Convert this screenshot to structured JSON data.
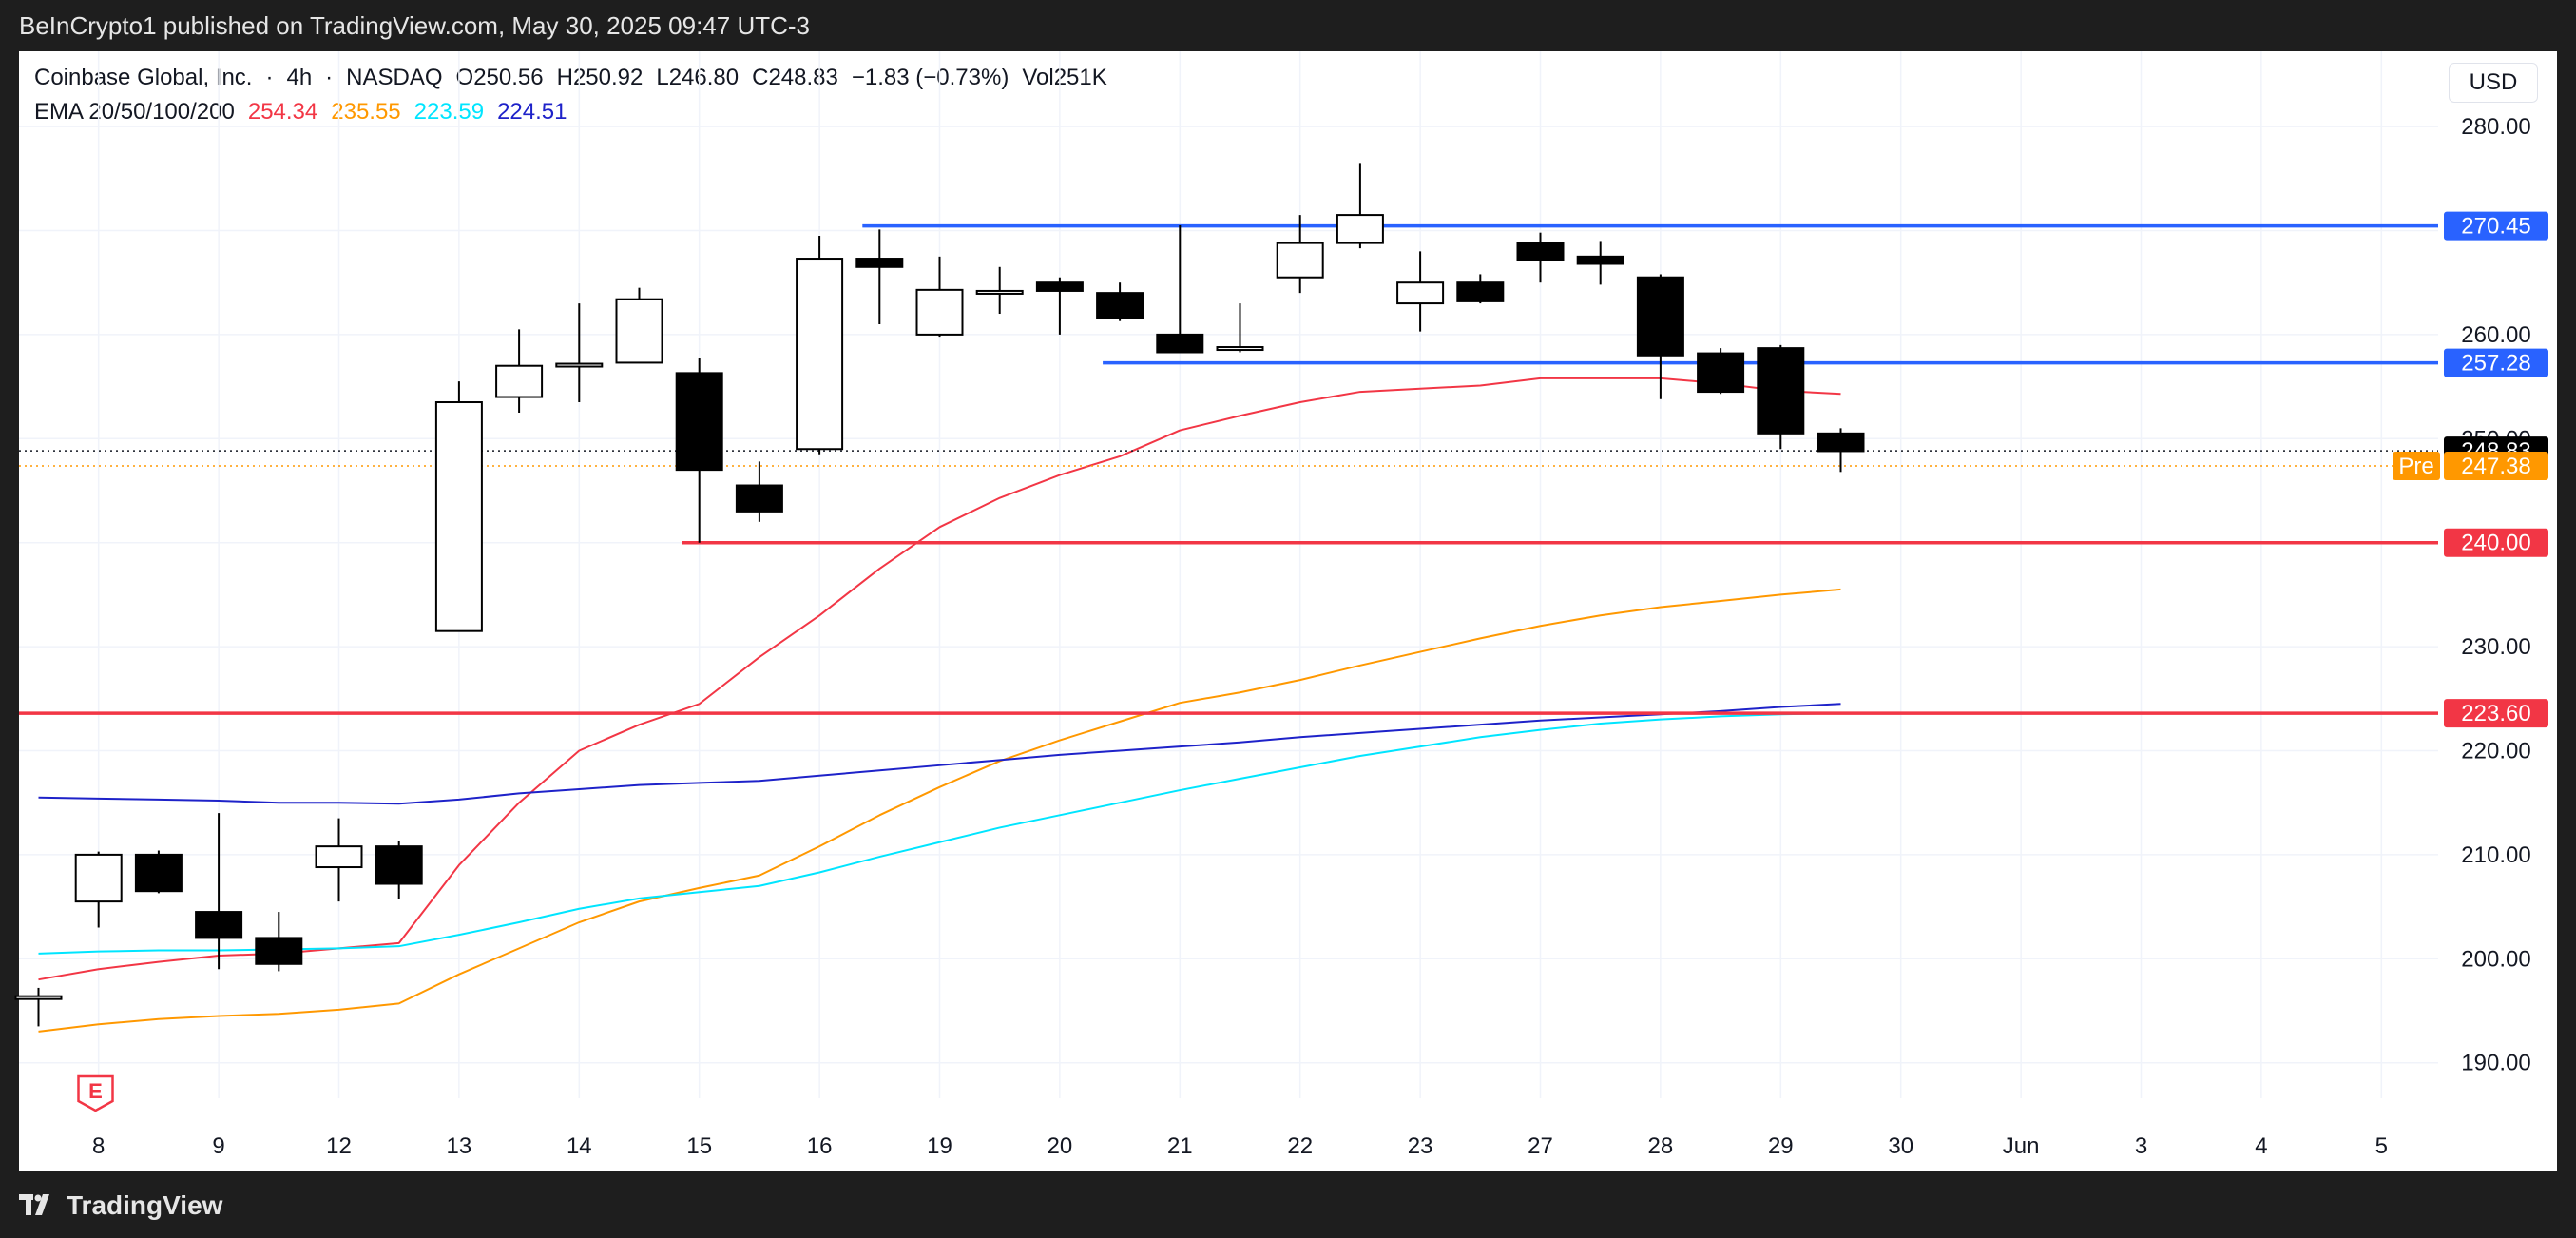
{
  "header": {
    "publisher": "BeInCrypto1 published on TradingView.com, May 30, 2025 09:47 UTC-3"
  },
  "legend": {
    "symbol": "Coinbase Global, Inc.",
    "interval": "4h",
    "exchange": "NASDAQ",
    "open": "O250.56",
    "high": "H250.92",
    "low": "L246.80",
    "close": "C248.83",
    "change": "−1.83 (−0.73%)",
    "volume": "Vol251K",
    "ema_label": "EMA 20/50/100/200",
    "ema_values": [
      {
        "value": "254.34",
        "color": "#f23645"
      },
      {
        "value": "235.55",
        "color": "#ff9800"
      },
      {
        "value": "223.59",
        "color": "#00e5ff"
      },
      {
        "value": "224.51",
        "color": "#1e22c9"
      }
    ]
  },
  "currency": "USD",
  "footer": {
    "brand": "TradingView"
  },
  "chart_data": {
    "type": "candlestick",
    "y_ticks": [
      190,
      200,
      210,
      220,
      230,
      240,
      250,
      260,
      270,
      280
    ],
    "y_tick_labels": [
      "190.00",
      "200.00",
      "210.00",
      "220.00",
      "230.00",
      "240.00",
      "250.00",
      "260.00",
      "270.00",
      "280.00"
    ],
    "x_ticks": [
      {
        "label": "8",
        "slot": 1
      },
      {
        "label": "9",
        "slot": 3
      },
      {
        "label": "12",
        "slot": 5
      },
      {
        "label": "13",
        "slot": 7
      },
      {
        "label": "14",
        "slot": 9
      },
      {
        "label": "15",
        "slot": 11
      },
      {
        "label": "16",
        "slot": 13
      },
      {
        "label": "19",
        "slot": 15
      },
      {
        "label": "20",
        "slot": 17
      },
      {
        "label": "21",
        "slot": 19
      },
      {
        "label": "22",
        "slot": 21
      },
      {
        "label": "23",
        "slot": 23
      },
      {
        "label": "27",
        "slot": 25
      },
      {
        "label": "28",
        "slot": 27
      },
      {
        "label": "29",
        "slot": 29
      },
      {
        "label": "30",
        "slot": 31
      },
      {
        "label": "Jun",
        "slot": 33
      },
      {
        "label": "3",
        "slot": 35
      },
      {
        "label": "4",
        "slot": 37
      },
      {
        "label": "5",
        "slot": 39
      }
    ],
    "candles": [
      {
        "o": 196.2,
        "h": 197.2,
        "l": 193.5,
        "c": 196.4
      },
      {
        "o": 205.5,
        "h": 210.3,
        "l": 203.0,
        "c": 210.0
      },
      {
        "o": 210.0,
        "h": 210.4,
        "l": 206.3,
        "c": 206.5
      },
      {
        "o": 204.5,
        "h": 214.0,
        "l": 199.0,
        "c": 202.0
      },
      {
        "o": 202.0,
        "h": 204.5,
        "l": 198.8,
        "c": 199.5
      },
      {
        "o": 208.8,
        "h": 213.5,
        "l": 205.5,
        "c": 210.8
      },
      {
        "o": 210.8,
        "h": 211.3,
        "l": 205.7,
        "c": 207.2
      },
      {
        "o": 231.5,
        "h": 255.5,
        "l": 231.5,
        "c": 253.5
      },
      {
        "o": 254.0,
        "h": 260.5,
        "l": 252.5,
        "c": 257.0
      },
      {
        "o": 257.0,
        "h": 263.0,
        "l": 253.5,
        "c": 257.2
      },
      {
        "o": 257.3,
        "h": 264.5,
        "l": 257.3,
        "c": 263.4
      },
      {
        "o": 256.3,
        "h": 257.8,
        "l": 240.0,
        "c": 247.0
      },
      {
        "o": 245.5,
        "h": 247.8,
        "l": 242.0,
        "c": 243.0
      },
      {
        "o": 249.0,
        "h": 269.5,
        "l": 248.5,
        "c": 267.3
      },
      {
        "o": 267.3,
        "h": 270.1,
        "l": 261.0,
        "c": 266.5
      },
      {
        "o": 260.0,
        "h": 267.5,
        "l": 259.8,
        "c": 264.3
      },
      {
        "o": 264.0,
        "h": 266.5,
        "l": 262.0,
        "c": 264.2
      },
      {
        "o": 265.0,
        "h": 265.5,
        "l": 260.0,
        "c": 264.2
      },
      {
        "o": 264.0,
        "h": 265.0,
        "l": 261.3,
        "c": 261.6
      },
      {
        "o": 260.0,
        "h": 270.5,
        "l": 258.5,
        "c": 258.3
      },
      {
        "o": 258.8,
        "h": 263.0,
        "l": 258.3,
        "c": 258.8
      },
      {
        "o": 265.5,
        "h": 271.5,
        "l": 264.0,
        "c": 268.8
      },
      {
        "o": 268.8,
        "h": 276.5,
        "l": 268.3,
        "c": 271.5
      },
      {
        "o": 263.0,
        "h": 268.0,
        "l": 260.3,
        "c": 265.0
      },
      {
        "o": 265.0,
        "h": 265.8,
        "l": 263.0,
        "c": 263.2
      },
      {
        "o": 268.8,
        "h": 269.8,
        "l": 265.0,
        "c": 267.2
      },
      {
        "o": 267.5,
        "h": 269.0,
        "l": 264.8,
        "c": 266.8
      },
      {
        "o": 265.5,
        "h": 265.8,
        "l": 253.8,
        "c": 258.0
      },
      {
        "o": 258.2,
        "h": 258.7,
        "l": 254.3,
        "c": 254.5
      },
      {
        "o": 258.7,
        "h": 259.0,
        "l": 249.0,
        "c": 250.5
      },
      {
        "o": 250.5,
        "h": 251.0,
        "l": 246.8,
        "c": 248.8
      }
    ],
    "ema": [
      {
        "name": "EMA 20",
        "color": "#f23645",
        "values": [
          198.0,
          199.0,
          199.7,
          200.3,
          200.5,
          201.0,
          201.5,
          209.0,
          215.0,
          220.0,
          222.5,
          224.5,
          229.0,
          233.0,
          237.5,
          241.5,
          244.3,
          246.5,
          248.3,
          250.8,
          252.2,
          253.5,
          254.5,
          254.8,
          255.1,
          255.8,
          255.8,
          255.8,
          255.3,
          254.6,
          254.3
        ]
      },
      {
        "name": "EMA 50",
        "color": "#ff9800",
        "values": [
          193.0,
          193.7,
          194.2,
          194.5,
          194.7,
          195.1,
          195.7,
          198.5,
          201.0,
          203.5,
          205.5,
          206.8,
          208.0,
          210.8,
          213.8,
          216.5,
          219.0,
          221.0,
          222.8,
          224.6,
          225.6,
          226.8,
          228.2,
          229.5,
          230.8,
          232.0,
          233.0,
          233.8,
          234.4,
          235.0,
          235.5
        ]
      },
      {
        "name": "EMA 100",
        "color": "#00e5ff",
        "values": [
          200.5,
          200.7,
          200.8,
          200.8,
          200.9,
          201.0,
          201.2,
          202.3,
          203.5,
          204.8,
          205.8,
          206.4,
          207.0,
          208.3,
          209.8,
          211.2,
          212.6,
          213.8,
          215.0,
          216.2,
          217.3,
          218.4,
          219.5,
          220.4,
          221.3,
          222.0,
          222.6,
          223.0,
          223.3,
          223.5,
          223.6
        ]
      },
      {
        "name": "EMA 200",
        "color": "#1e22c9",
        "values": [
          215.5,
          215.4,
          215.3,
          215.2,
          215.0,
          215.0,
          214.9,
          215.3,
          215.9,
          216.3,
          216.7,
          216.9,
          217.1,
          217.6,
          218.1,
          218.6,
          219.1,
          219.6,
          220.0,
          220.4,
          220.8,
          221.3,
          221.7,
          222.1,
          222.5,
          222.9,
          223.2,
          223.5,
          223.8,
          224.2,
          224.5
        ]
      }
    ],
    "levels": [
      {
        "value": 270.45,
        "label": "270.45",
        "color": "#2962ff",
        "from_slot": 14
      },
      {
        "value": 257.28,
        "label": "257.28",
        "color": "#2962ff",
        "from_slot": 18
      },
      {
        "value": 240.0,
        "label": "240.00",
        "color": "#f23645",
        "from_slot": 11
      },
      {
        "value": 223.6,
        "label": "223.60",
        "color": "#f23645",
        "from_slot": 0
      }
    ],
    "last_price": {
      "value": 248.83,
      "label": "248.83",
      "color": "#000000"
    },
    "pre_market": {
      "value": 247.38,
      "label": "247.38",
      "tag": "Pre",
      "color": "#ff9800"
    },
    "marker": {
      "label": "E",
      "color": "#f23645"
    }
  }
}
